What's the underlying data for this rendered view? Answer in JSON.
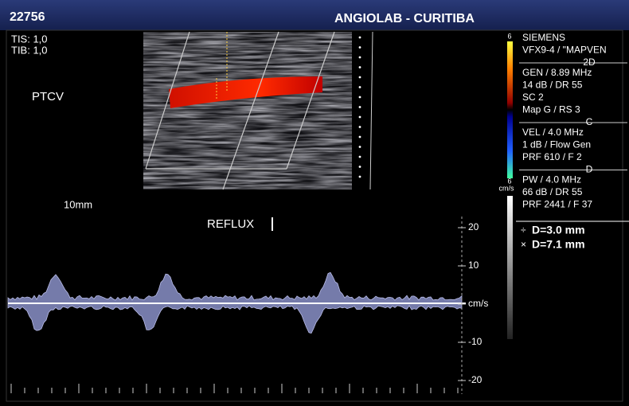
{
  "header": {
    "id": "22756",
    "title": "ANGIOLAB - CURITIBA"
  },
  "info": {
    "tis": "TIS: 1,0",
    "tib": "TIB: 1,0",
    "label": "PTCV",
    "depth": "10mm",
    "annotation": "REFLUX"
  },
  "side_panel": {
    "sections": [
      {
        "lines": [
          "SIEMENS",
          "VFX9-4 / \"MAPVEN"
        ]
      },
      {
        "heading": "2D",
        "lines": [
          "GEN / 8.89 MHz",
          "14 dB / DR 55",
          "SC 2",
          "Map G / RS 3"
        ]
      },
      {
        "heading": "C",
        "lines": [
          "VEL / 4.0 MHz",
          "1 dB / Flow Gen",
          "PRF 610 / F 2"
        ]
      },
      {
        "heading": "D",
        "lines": [
          "PW / 4.0 MHz",
          "66 dB / DR 55",
          "PRF 2441 / F 37"
        ]
      }
    ],
    "measurements": [
      "D=3.0 mm",
      "D=7.1 mm"
    ]
  },
  "color_bar": {
    "top": "6",
    "bottom": "6",
    "unit": "cm/s"
  },
  "spectral_scale": {
    "labels": [
      "20",
      "10",
      "cm/s",
      "-10",
      "-20"
    ]
  }
}
